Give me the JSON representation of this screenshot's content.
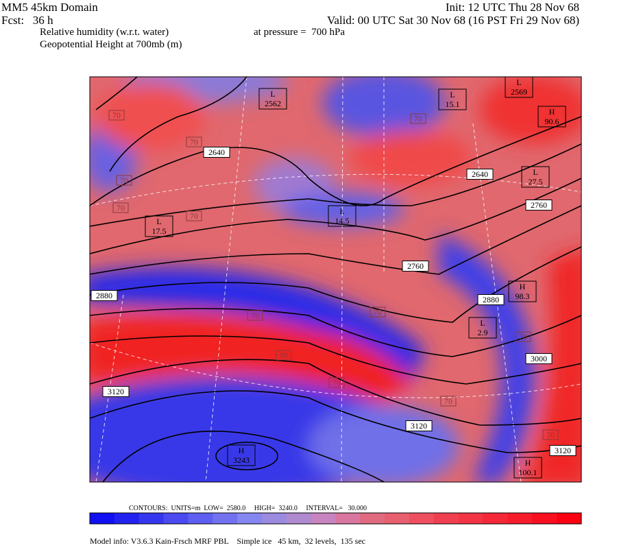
{
  "header": {
    "title": "MM5 45km Domain",
    "forecast": "Fcst:   36 h",
    "field1": "Relative humidity (w.r.t. water)",
    "field2": "Geopotential Height at 700mb (m)",
    "init": "Init: 12 UTC Thu 28 Nov 68",
    "valid": "Valid: 00 UTC Sat 30 Nov 68 (16 PST Fri 29 Nov 68)",
    "pressure": "at pressure =  700 hPa"
  },
  "map": {
    "contour_labels": [
      2640,
      2640,
      2760,
      2760,
      2880,
      2880,
      3000,
      3120,
      3120,
      3120
    ],
    "humidity_labels": [
      "70",
      "70",
      "70",
      "70",
      "70",
      "70",
      "70",
      "70",
      "70",
      "70",
      "70",
      "70",
      "90"
    ],
    "centers": [
      {
        "type": "L",
        "value": "2562"
      },
      {
        "type": "L",
        "value": "2569"
      },
      {
        "type": "H",
        "value": "3243"
      },
      {
        "type": "L",
        "value": "15.1"
      },
      {
        "type": "L",
        "value": "17.5"
      },
      {
        "type": "L",
        "value": "27.5"
      },
      {
        "type": "L",
        "value": "14.5"
      },
      {
        "type": "H",
        "value": "90.6"
      },
      {
        "type": "H",
        "value": "98.3"
      },
      {
        "type": "H",
        "value": "100.1"
      },
      {
        "type": "L",
        "value": "2.9"
      }
    ]
  },
  "footer": {
    "contours": "CONTOURS:  UNITS=m  LOW=  2580.0     HIGH=  3240.0     INTERVAL=   30.000",
    "model_info": "Model info: V3.6.3 Kain-Frsch MRF PBL    Simple ice   45 km,  32 levels,  135 sec"
  }
}
